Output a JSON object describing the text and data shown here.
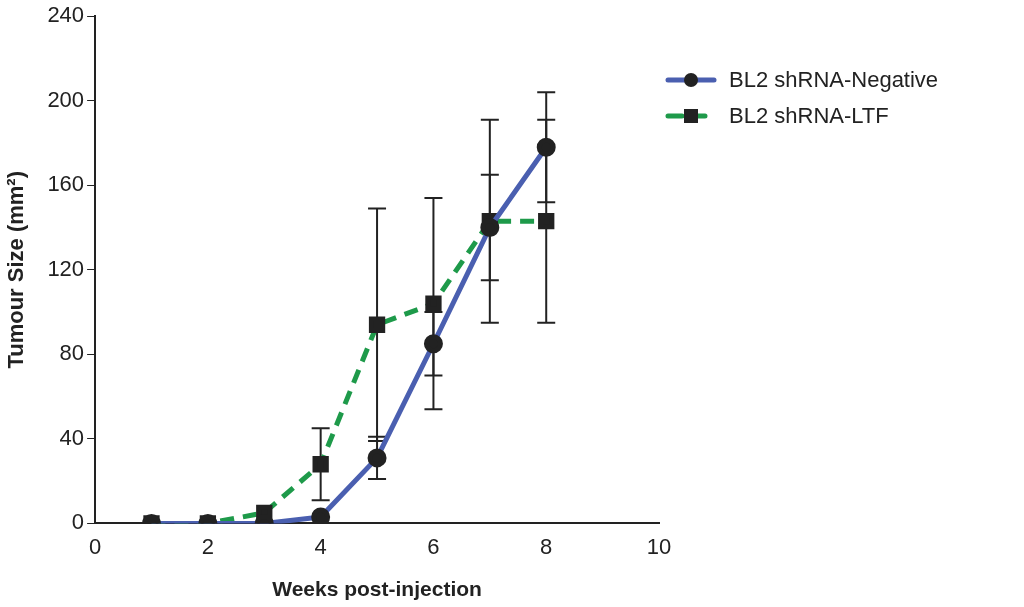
{
  "chart_data": {
    "type": "line",
    "xlabel": "Weeks post-injection",
    "ylabel": "Tumour Size (mm²)",
    "x": [
      1,
      2,
      3,
      4,
      5,
      6,
      7,
      8
    ],
    "series": [
      {
        "name": "BL2 shRNA-Negative",
        "color": "#4a5fb0",
        "values": [
          0,
          0,
          0,
          3,
          31,
          85,
          140,
          178
        ],
        "errors": [
          null,
          null,
          null,
          null,
          10,
          15,
          25,
          26
        ],
        "marker": "circle",
        "line_style": "solid"
      },
      {
        "name": "BL2 shRNA-LTF",
        "color": "#1e9a4a",
        "values": [
          0,
          0,
          5,
          28,
          94,
          104,
          143,
          143
        ],
        "errors": [
          null,
          null,
          null,
          17,
          55,
          50,
          48,
          48
        ],
        "marker": "square",
        "line_style": "dashed"
      }
    ],
    "xlim": [
      0,
      10
    ],
    "xticks": [
      0,
      2,
      4,
      6,
      8,
      10
    ],
    "ylim": [
      0,
      240
    ],
    "yticks": [
      0,
      40,
      80,
      120,
      160,
      200,
      240
    ],
    "grid": false,
    "legend": "top right"
  }
}
